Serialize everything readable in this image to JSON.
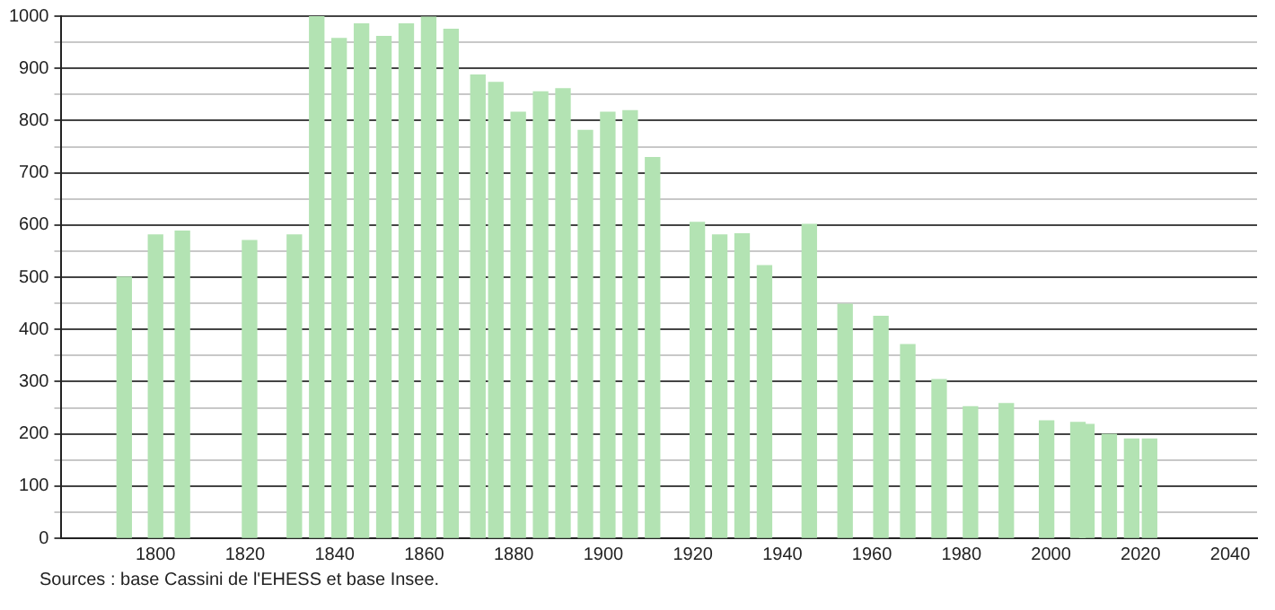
{
  "chart_data": {
    "type": "bar",
    "x": [
      1793,
      1800,
      1806,
      1821,
      1831,
      1836,
      1841,
      1846,
      1851,
      1856,
      1861,
      1866,
      1872,
      1876,
      1881,
      1886,
      1891,
      1896,
      1901,
      1906,
      1911,
      1921,
      1926,
      1931,
      1936,
      1946,
      1954,
      1962,
      1968,
      1975,
      1982,
      1990,
      1999,
      2006,
      2008,
      2013,
      2018,
      2022
    ],
    "values": [
      500,
      581,
      588,
      570,
      581,
      1000,
      957,
      985,
      961,
      985,
      998,
      975,
      887,
      873,
      816,
      855,
      861,
      781,
      816,
      819,
      729,
      605,
      581,
      583,
      522,
      601,
      448,
      425,
      371,
      304,
      252,
      258,
      225,
      222,
      218,
      199,
      190,
      190
    ],
    "color": "#b3e3b3",
    "xlim": [
      1779,
      2046
    ],
    "xticks": [
      1800,
      1820,
      1840,
      1860,
      1880,
      1900,
      1920,
      1940,
      1960,
      1980,
      2000,
      2020,
      2040
    ],
    "ylim": [
      0,
      1000
    ],
    "yticks": [
      0,
      {
        "value": 50,
        "label": null
      },
      100,
      {
        "value": 150,
        "label": null
      },
      200,
      {
        "value": 250,
        "label": null
      },
      300,
      {
        "value": 350,
        "label": null
      },
      400,
      {
        "value": 450,
        "label": null
      },
      500,
      {
        "value": 550,
        "label": null
      },
      600,
      {
        "value": 650,
        "label": null
      },
      700,
      {
        "value": 750,
        "label": null
      },
      800,
      {
        "value": 850,
        "label": null
      },
      900,
      {
        "value": 950,
        "label": null
      },
      1000
    ],
    "grid": "y",
    "legend": false,
    "annotations": [
      "Sources : base Cassini de l'EHESS et base Insee."
    ]
  }
}
